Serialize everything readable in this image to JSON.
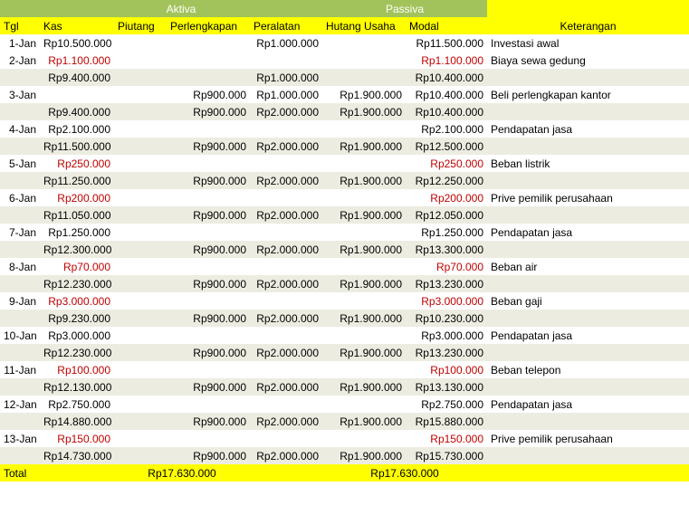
{
  "colors": {
    "group_header_bg": "#a2c35b",
    "group_header_fg": "#ffffff",
    "col_header_bg": "#ffff00",
    "alt_row_bg": "#ecece1",
    "negative_fg": "#c00000",
    "total_bg": "#ffff00"
  },
  "headers": {
    "aktiva": "Aktiva",
    "passiva": "Passiva",
    "tgl": "Tgl",
    "kas": "Kas",
    "piutang": "Piutang",
    "perlengkapan": "Perlengkapan",
    "peralatan": "Peralatan",
    "hutang": "Hutang Usaha",
    "modal": "Modal",
    "keterangan": "Keterangan"
  },
  "columns": [
    "tgl",
    "kas",
    "piutang",
    "perlengkapan",
    "peralatan",
    "hutang",
    "modal",
    "keterangan"
  ],
  "rows": [
    {
      "tgl": "1‑Jan",
      "kas": "Rp10.500.000",
      "peralatan": "Rp1.000.000",
      "modal": "Rp11.500.000",
      "keterangan": "Investasi awal"
    },
    {
      "tgl": "2‑Jan",
      "kas": "Rp1.100.000",
      "kas_neg": true,
      "modal": "Rp1.100.000",
      "modal_neg": true,
      "keterangan": "Biaya sewa gedung"
    },
    {
      "alt": true,
      "kas": "Rp9.400.000",
      "peralatan": "Rp1.000.000",
      "modal": "Rp10.400.000"
    },
    {
      "tgl": "3‑Jan",
      "perlengkapan": "Rp900.000",
      "peralatan": "Rp1.000.000",
      "hutang": "Rp1.900.000",
      "modal": "Rp10.400.000",
      "keterangan": "Beli perlengkapan kantor"
    },
    {
      "alt": true,
      "kas": "Rp9.400.000",
      "perlengkapan": "Rp900.000",
      "peralatan": "Rp2.000.000",
      "hutang": "Rp1.900.000",
      "modal": "Rp10.400.000"
    },
    {
      "tgl": "4‑Jan",
      "kas": "Rp2.100.000",
      "modal": "Rp2.100.000",
      "keterangan": "Pendapatan jasa"
    },
    {
      "alt": true,
      "kas": "Rp11.500.000",
      "perlengkapan": "Rp900.000",
      "peralatan": "Rp2.000.000",
      "hutang": "Rp1.900.000",
      "modal": "Rp12.500.000"
    },
    {
      "tgl": "5‑Jan",
      "kas": "Rp250.000",
      "kas_neg": true,
      "modal": "Rp250.000",
      "modal_neg": true,
      "keterangan": "Beban listrik"
    },
    {
      "alt": true,
      "kas": "Rp11.250.000",
      "perlengkapan": "Rp900.000",
      "peralatan": "Rp2.000.000",
      "hutang": "Rp1.900.000",
      "modal": "Rp12.250.000"
    },
    {
      "tgl": "6‑Jan",
      "kas": "Rp200.000",
      "kas_neg": true,
      "modal": "Rp200.000",
      "modal_neg": true,
      "keterangan": "Prive pemilik perusahaan"
    },
    {
      "alt": true,
      "kas": "Rp11.050.000",
      "perlengkapan": "Rp900.000",
      "peralatan": "Rp2.000.000",
      "hutang": "Rp1.900.000",
      "modal": "Rp12.050.000"
    },
    {
      "tgl": "7‑Jan",
      "kas": "Rp1.250.000",
      "modal": "Rp1.250.000",
      "keterangan": "Pendapatan jasa"
    },
    {
      "alt": true,
      "kas": "Rp12.300.000",
      "perlengkapan": "Rp900.000",
      "peralatan": "Rp2.000.000",
      "hutang": "Rp1.900.000",
      "modal": "Rp13.300.000"
    },
    {
      "tgl": "8‑Jan",
      "kas": "Rp70.000",
      "kas_neg": true,
      "modal": "Rp70.000",
      "modal_neg": true,
      "keterangan": "Beban air"
    },
    {
      "alt": true,
      "kas": "Rp12.230.000",
      "perlengkapan": "Rp900.000",
      "peralatan": "Rp2.000.000",
      "hutang": "Rp1.900.000",
      "modal": "Rp13.230.000"
    },
    {
      "tgl": "9‑Jan",
      "kas": "Rp3.000.000",
      "kas_neg": true,
      "modal": "Rp3.000.000",
      "modal_neg": true,
      "keterangan": "Beban gaji"
    },
    {
      "alt": true,
      "kas": "Rp9.230.000",
      "perlengkapan": "Rp900.000",
      "peralatan": "Rp2.000.000",
      "hutang": "Rp1.900.000",
      "modal": "Rp10.230.000"
    },
    {
      "tgl": "10‑Jan",
      "kas": "Rp3.000.000",
      "modal": "Rp3.000.000",
      "keterangan": "Pendapatan jasa"
    },
    {
      "alt": true,
      "kas": "Rp12.230.000",
      "perlengkapan": "Rp900.000",
      "peralatan": "Rp2.000.000",
      "hutang": "Rp1.900.000",
      "modal": "Rp13.230.000"
    },
    {
      "tgl": "11‑Jan",
      "kas": "Rp100.000",
      "kas_neg": true,
      "modal": "Rp100.000",
      "modal_neg": true,
      "keterangan": "Beban telepon"
    },
    {
      "alt": true,
      "kas": "Rp12.130.000",
      "perlengkapan": "Rp900.000",
      "peralatan": "Rp2.000.000",
      "hutang": "Rp1.900.000",
      "modal": "Rp13.130.000"
    },
    {
      "tgl": "12‑Jan",
      "kas": "Rp2.750.000",
      "modal": "Rp2.750.000",
      "keterangan": "Pendapatan jasa"
    },
    {
      "alt": true,
      "kas": "Rp14.880.000",
      "perlengkapan": "Rp900.000",
      "peralatan": "Rp2.000.000",
      "hutang": "Rp1.900.000",
      "modal": "Rp15.880.000"
    },
    {
      "tgl": "13‑Jan",
      "kas": "Rp150.000",
      "kas_neg": true,
      "modal": "Rp150.000",
      "modal_neg": true,
      "keterangan": "Prive pemilik perusahaan"
    },
    {
      "alt": true,
      "kas": "Rp14.730.000",
      "perlengkapan": "Rp900.000",
      "peralatan": "Rp2.000.000",
      "hutang": "Rp1.900.000",
      "modal": "Rp15.730.000"
    }
  ],
  "total": {
    "label": "Total",
    "aktiva": "Rp17.630.000",
    "passiva": "Rp17.630.000"
  }
}
